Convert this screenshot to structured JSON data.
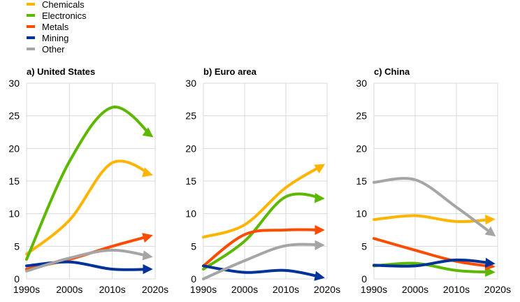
{
  "chart_data": {
    "type": "line",
    "legend": {
      "position": "top-left",
      "entries": [
        "Chemicals",
        "Electronics",
        "Metals",
        "Mining",
        "Other"
      ]
    },
    "colors": {
      "Chemicals": "#FFB400",
      "Electronics": "#5CB800",
      "Metals": "#FF4B00",
      "Mining": "#003299",
      "Other": "#A5A5A5"
    },
    "x": [
      "1990s",
      "2000s",
      "2010s",
      "2020s"
    ],
    "ylim": [
      0,
      30
    ],
    "yticks": [
      0,
      5,
      10,
      15,
      20,
      25,
      30
    ],
    "grid": true,
    "panels": [
      {
        "title": "a) United States",
        "series": [
          {
            "name": "Chemicals",
            "values": [
              3.8,
              9.0,
              17.8,
              15.8
            ]
          },
          {
            "name": "Electronics",
            "values": [
              3.0,
              18.0,
              26.3,
              21.5
            ]
          },
          {
            "name": "Metals",
            "values": [
              1.5,
              3.0,
              5.0,
              6.8
            ]
          },
          {
            "name": "Mining",
            "values": [
              2.0,
              2.6,
              1.5,
              1.5
            ]
          },
          {
            "name": "Other",
            "values": [
              1.2,
              3.2,
              4.4,
              3.3
            ]
          }
        ]
      },
      {
        "title": "b) Euro area",
        "series": [
          {
            "name": "Chemicals",
            "values": [
              6.4,
              8.3,
              14.0,
              17.8
            ]
          },
          {
            "name": "Electronics",
            "values": [
              1.5,
              5.8,
              12.6,
              12.3
            ]
          },
          {
            "name": "Metals",
            "values": [
              2.0,
              6.8,
              7.5,
              7.5
            ]
          },
          {
            "name": "Mining",
            "values": [
              2.0,
              1.0,
              1.3,
              0.1
            ]
          },
          {
            "name": "Other",
            "values": [
              0.0,
              2.8,
              5.1,
              5.2
            ]
          }
        ]
      },
      {
        "title": "c) China",
        "series": [
          {
            "name": "Chemicals",
            "values": [
              9.1,
              9.7,
              8.8,
              9.2
            ]
          },
          {
            "name": "Electronics",
            "values": [
              2.0,
              2.4,
              1.3,
              1.0
            ]
          },
          {
            "name": "Metals",
            "values": [
              6.2,
              4.4,
              2.7,
              1.8
            ]
          },
          {
            "name": "Mining",
            "values": [
              2.1,
              2.0,
              2.9,
              2.3
            ]
          },
          {
            "name": "Other",
            "values": [
              14.8,
              15.2,
              11.0,
              6.3
            ]
          }
        ]
      }
    ]
  }
}
